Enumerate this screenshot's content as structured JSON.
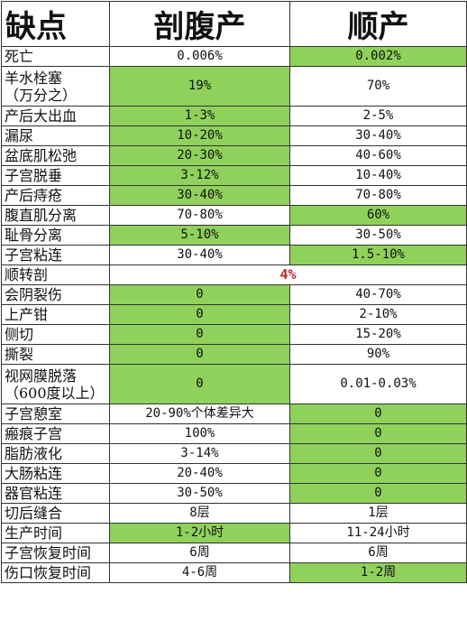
{
  "header": {
    "col1": "缺点",
    "col2": "剖腹产",
    "col3": "顺产"
  },
  "rows": [
    {
      "name": "死亡",
      "c": "0.006%",
      "v": "0.002%",
      "cg": false,
      "vg": true
    },
    {
      "name": "羊水栓塞\n（万分之）",
      "c": "19%",
      "v": "70%",
      "cg": true,
      "vg": false,
      "tall": true
    },
    {
      "name": "产后大出血",
      "c": "1-3%",
      "v": "2-5%",
      "cg": true,
      "vg": false
    },
    {
      "name": "漏尿",
      "c": "10-20%",
      "v": "30-40%",
      "cg": true,
      "vg": false
    },
    {
      "name": "盆底肌松弛",
      "c": "20-30%",
      "v": "40-60%",
      "cg": true,
      "vg": false
    },
    {
      "name": "子宫脱垂",
      "c": "3-12%",
      "v": "10-40%",
      "cg": true,
      "vg": false
    },
    {
      "name": "产后痔疮",
      "c": "30-40%",
      "v": "70-80%",
      "cg": true,
      "vg": false
    },
    {
      "name": "腹直肌分离",
      "c": "70-80%",
      "v": "60%",
      "cg": false,
      "vg": true
    },
    {
      "name": "耻骨分离",
      "c": "5-10%",
      "v": "30-50%",
      "cg": true,
      "vg": false
    },
    {
      "name": "子宫粘连",
      "c": "30-40%",
      "v": "1.5-10%",
      "cg": false,
      "vg": true
    },
    {
      "name": "顺转剖",
      "c": "4%",
      "v": "",
      "cg": false,
      "vg": false,
      "merged": true
    },
    {
      "name": "会阴裂伤",
      "c": "0",
      "v": "40-70%",
      "cg": true,
      "vg": false
    },
    {
      "name": "上产钳",
      "c": "0",
      "v": "2-10%",
      "cg": true,
      "vg": false
    },
    {
      "name": "侧切",
      "c": "0",
      "v": "15-20%",
      "cg": true,
      "vg": false
    },
    {
      "name": "撕裂",
      "c": "0",
      "v": "90%",
      "cg": true,
      "vg": false
    },
    {
      "name": "视网膜脱落\n（600度以上）",
      "c": "0",
      "v": "0.01-0.03%",
      "cg": true,
      "vg": false,
      "tall": true
    },
    {
      "name": "子宫憩室",
      "c": "20-90%个体差异大",
      "v": "0",
      "cg": false,
      "vg": true
    },
    {
      "name": "瘢痕子宫",
      "c": "100%",
      "v": "0",
      "cg": false,
      "vg": true
    },
    {
      "name": "脂肪液化",
      "c": "3-14%",
      "v": "0",
      "cg": false,
      "vg": true
    },
    {
      "name": "大肠粘连",
      "c": "20-40%",
      "v": "0",
      "cg": false,
      "vg": true
    },
    {
      "name": "器官粘连",
      "c": "30-50%",
      "v": "0",
      "cg": false,
      "vg": true
    },
    {
      "name": "切后缝合",
      "c": "8层",
      "v": "1层",
      "cg": false,
      "vg": false
    },
    {
      "name": "生产时间",
      "c": "1-2小时",
      "v": "11-24小时",
      "cg": true,
      "vg": false
    },
    {
      "name": "子宫恢复时间",
      "c": "6周",
      "v": "6周",
      "cg": false,
      "vg": false
    },
    {
      "name": "伤口恢复时间",
      "c": "4-6周",
      "v": "1-2周",
      "cg": false,
      "vg": true
    }
  ],
  "colors": {
    "green": "#8fd15a",
    "red": "#c0232b"
  }
}
